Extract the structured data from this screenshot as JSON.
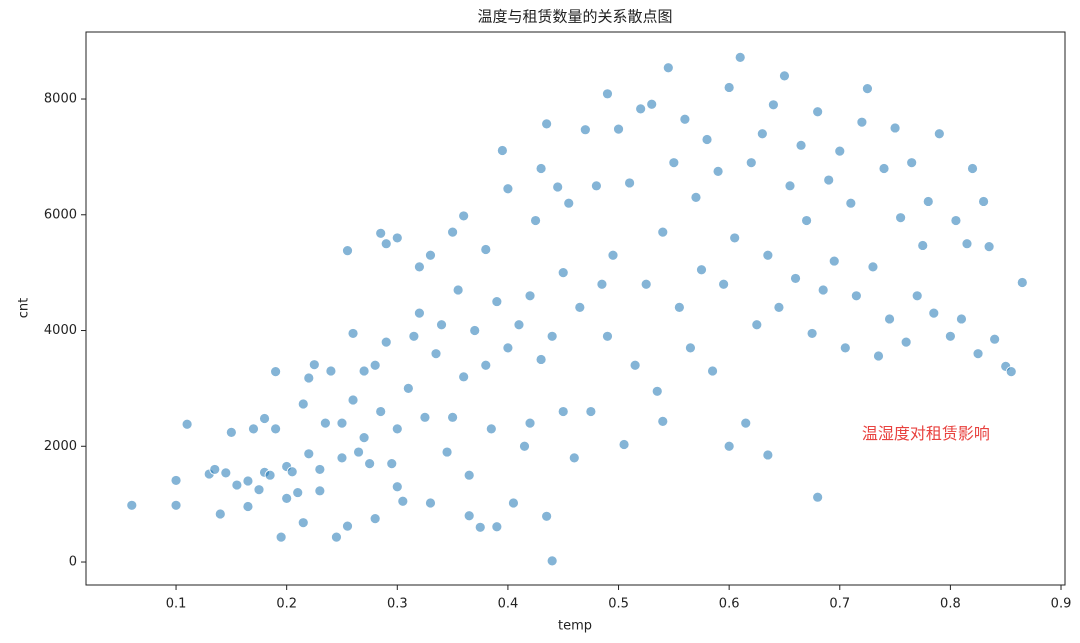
{
  "chart_data": {
    "type": "scatter",
    "title": "温度与租赁数量的关系散点图",
    "xlabel": "temp",
    "ylabel": "cnt",
    "annotation": {
      "text": "温湿度对租赁影响",
      "x": 0.72,
      "y": 2200,
      "color": "#e8423f"
    },
    "color": "#1f77b4",
    "xlim": [
      0.0186,
      0.9036
    ],
    "ylim": [
      -397,
      9158
    ],
    "xticks": [
      0.1,
      0.2,
      0.3,
      0.4,
      0.5,
      0.6,
      0.7,
      0.8,
      0.9
    ],
    "yticks": [
      0,
      2000,
      4000,
      6000,
      8000
    ],
    "grid": false,
    "x": [
      0.06,
      0.1,
      0.1,
      0.11,
      0.13,
      0.135,
      0.14,
      0.145,
      0.15,
      0.155,
      0.165,
      0.165,
      0.17,
      0.175,
      0.18,
      0.18,
      0.185,
      0.19,
      0.19,
      0.195,
      0.2,
      0.2,
      0.205,
      0.21,
      0.215,
      0.215,
      0.22,
      0.22,
      0.225,
      0.23,
      0.23,
      0.235,
      0.24,
      0.245,
      0.25,
      0.25,
      0.255,
      0.255,
      0.26,
      0.26,
      0.265,
      0.27,
      0.27,
      0.275,
      0.28,
      0.28,
      0.285,
      0.285,
      0.29,
      0.29,
      0.295,
      0.3,
      0.3,
      0.3,
      0.305,
      0.31,
      0.315,
      0.32,
      0.32,
      0.325,
      0.33,
      0.33,
      0.335,
      0.34,
      0.345,
      0.35,
      0.35,
      0.355,
      0.36,
      0.36,
      0.365,
      0.365,
      0.37,
      0.375,
      0.38,
      0.38,
      0.385,
      0.39,
      0.39,
      0.395,
      0.4,
      0.4,
      0.405,
      0.41,
      0.415,
      0.42,
      0.42,
      0.425,
      0.43,
      0.43,
      0.435,
      0.435,
      0.44,
      0.44,
      0.445,
      0.45,
      0.45,
      0.455,
      0.46,
      0.465,
      0.47,
      0.475,
      0.48,
      0.485,
      0.49,
      0.49,
      0.495,
      0.5,
      0.505,
      0.51,
      0.515,
      0.52,
      0.525,
      0.53,
      0.535,
      0.54,
      0.54,
      0.545,
      0.55,
      0.555,
      0.56,
      0.565,
      0.57,
      0.575,
      0.58,
      0.585,
      0.59,
      0.595,
      0.6,
      0.6,
      0.605,
      0.61,
      0.615,
      0.62,
      0.625,
      0.63,
      0.635,
      0.635,
      0.64,
      0.645,
      0.65,
      0.655,
      0.66,
      0.665,
      0.67,
      0.675,
      0.68,
      0.68,
      0.685,
      0.69,
      0.695,
      0.7,
      0.705,
      0.71,
      0.715,
      0.72,
      0.725,
      0.73,
      0.735,
      0.74,
      0.745,
      0.75,
      0.755,
      0.76,
      0.765,
      0.77,
      0.775,
      0.78,
      0.785,
      0.79,
      0.8,
      0.805,
      0.81,
      0.815,
      0.82,
      0.825,
      0.83,
      0.835,
      0.84,
      0.85,
      0.855,
      0.865
    ],
    "values": [
      980,
      980,
      1410,
      2380,
      1520,
      1600,
      830,
      1540,
      2240,
      1330,
      1400,
      960,
      2300,
      1250,
      1550,
      2480,
      1500,
      2300,
      3290,
      430,
      1650,
      1100,
      1560,
      1200,
      2730,
      680,
      3180,
      1870,
      3410,
      1600,
      1230,
      2400,
      3300,
      430,
      1800,
      2400,
      620,
      5380,
      2800,
      3950,
      1900,
      3300,
      2150,
      1700,
      750,
      3400,
      5680,
      2600,
      5500,
      3800,
      1700,
      1300,
      5600,
      2300,
      1050,
      3000,
      3900,
      5100,
      4300,
      2500,
      5300,
      1020,
      3600,
      4100,
      1900,
      5700,
      2500,
      4700,
      3200,
      5980,
      1500,
      800,
      4000,
      600,
      5400,
      3400,
      2300,
      610,
      4500,
      7110,
      3700,
      6450,
      1020,
      4100,
      2000,
      2400,
      4600,
      5900,
      3500,
      6800,
      790,
      7570,
      20,
      3900,
      6480,
      2600,
      5000,
      6200,
      1800,
      4400,
      7470,
      2600,
      6500,
      4800,
      8090,
      3900,
      5300,
      7480,
      2030,
      6550,
      3400,
      7830,
      4800,
      7910,
      2950,
      5700,
      2430,
      8540,
      6900,
      4400,
      7650,
      3700,
      6300,
      5050,
      7300,
      3300,
      6750,
      4800,
      2000,
      8200,
      5600,
      8720,
      2400,
      6900,
      4100,
      7400,
      1850,
      5300,
      7900,
      4400,
      8400,
      6500,
      4900,
      7200,
      5900,
      3950,
      1120,
      7780,
      4700,
      6600,
      5200,
      7100,
      3700,
      6200,
      4600,
      7600,
      8180,
      5100,
      3560,
      6800,
      4200,
      7500,
      5950,
      3800,
      6900,
      4600,
      5470,
      6230,
      4300,
      7400,
      3900,
      5900,
      4200,
      5500,
      6800,
      3600,
      6230,
      5450,
      3850,
      3380,
      3290,
      4830
    ]
  }
}
